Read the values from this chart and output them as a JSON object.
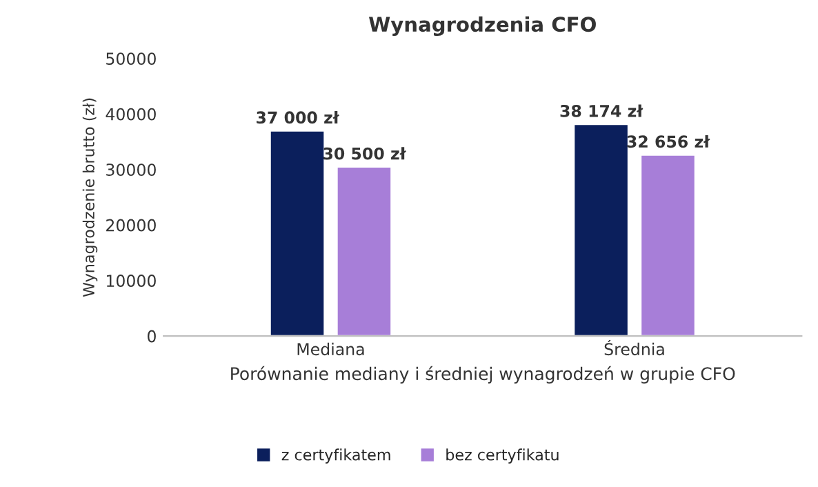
{
  "chart_data": {
    "type": "bar",
    "title": "Wynagrodzenia CFO",
    "xlabel": "Porównanie mediany i średniej wynagrodzeń w grupie CFO",
    "ylabel": "Wynagrodzenie brutto (zł)",
    "categories": [
      "Mediana",
      "Średnia"
    ],
    "series": [
      {
        "name": "z certyfikatem",
        "color": "#0b1f5c",
        "values": [
          37000,
          38174
        ],
        "value_labels": [
          "37 000 zł",
          "38 174 zł"
        ]
      },
      {
        "name": "bez certyfikatu",
        "color": "#a77ed8",
        "values": [
          30500,
          32656
        ],
        "value_labels": [
          "30 500 zł",
          "32 656 zł"
        ]
      }
    ],
    "ylim": [
      0,
      50000
    ],
    "yticks": [
      0,
      10000,
      20000,
      30000,
      40000,
      50000
    ],
    "grid": false,
    "legend": "bottom"
  }
}
